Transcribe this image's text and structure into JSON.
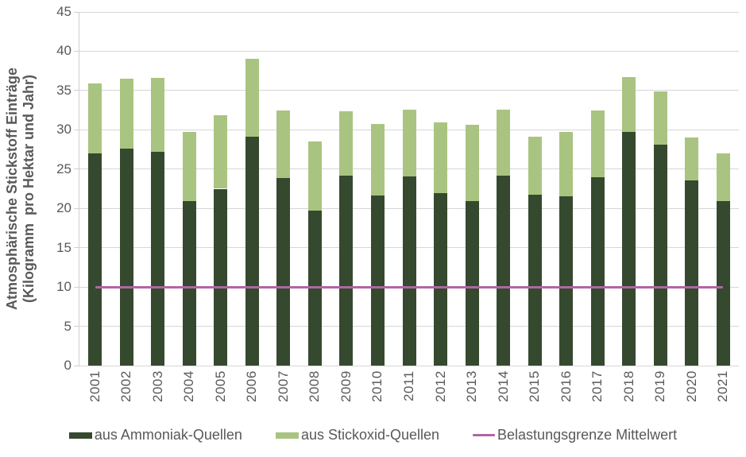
{
  "chart_data": {
    "type": "bar",
    "stacked": true,
    "ylabel_line1": "Atmosphärische Stickstoff Einträge",
    "ylabel_line2": "(Kilogramm  pro Hektar und Jahr)",
    "categories": [
      "2001",
      "2002",
      "2003",
      "2004",
      "2005",
      "2006",
      "2007",
      "2008",
      "2009",
      "2010",
      "2011",
      "2012",
      "2013",
      "2014",
      "2015",
      "2016",
      "2017",
      "2018",
      "2019",
      "2020",
      "2021"
    ],
    "series": [
      {
        "name": "aus Ammoniak-Quellen",
        "color": "#35492e",
        "values": [
          27.0,
          27.6,
          27.2,
          20.9,
          22.5,
          29.1,
          23.9,
          19.7,
          24.2,
          21.6,
          24.1,
          21.9,
          20.9,
          24.2,
          21.7,
          21.5,
          24.0,
          29.7,
          28.1,
          23.6,
          20.9
        ]
      },
      {
        "name": "aus Stickoxid-Quellen",
        "color": "#a9c480",
        "values": [
          8.9,
          8.9,
          9.4,
          8.8,
          9.4,
          9.9,
          8.6,
          8.8,
          8.2,
          9.1,
          8.5,
          9.0,
          9.7,
          8.4,
          7.4,
          8.2,
          8.5,
          7.0,
          6.8,
          5.4,
          6.1
        ]
      }
    ],
    "limit_line": {
      "name": "Belastungsgrenze Mittelwert",
      "color": "#b165a5",
      "value": 10
    },
    "ylim": [
      0,
      45
    ],
    "y_ticks": [
      0,
      5,
      10,
      15,
      20,
      25,
      30,
      35,
      40,
      45
    ],
    "grid": true,
    "legend_position": "bottom"
  },
  "colors": {
    "grid": "#d6d6d6",
    "axis": "#d0d0d0",
    "text": "#595959",
    "background": "#ffffff"
  }
}
